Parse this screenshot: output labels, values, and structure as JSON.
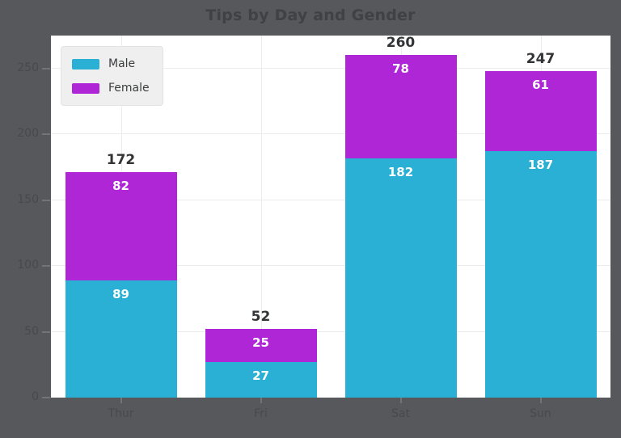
{
  "chart_data": {
    "type": "bar",
    "stacked": true,
    "title": "Tips by Day and Gender",
    "xlabel": "",
    "ylabel": "",
    "categories": [
      "Thur",
      "Fri",
      "Sat",
      "Sun"
    ],
    "series": [
      {
        "name": "Male",
        "color": "#29B0D4",
        "values": [
          89,
          27,
          182,
          187
        ]
      },
      {
        "name": "Female",
        "color": "#AF26D6",
        "values": [
          82,
          25,
          78,
          61
        ]
      }
    ],
    "total_labels": [
      "172",
      "52",
      "260",
      "247"
    ],
    "yticks": [
      "0",
      "50",
      "100",
      "150",
      "200",
      "250"
    ],
    "ytick_values": [
      0,
      50,
      100,
      150,
      200,
      250
    ],
    "ylim": [
      0,
      275
    ],
    "grid": true,
    "legend_position": "upper left",
    "legend_entries": [
      "Male",
      "Female"
    ]
  },
  "colors": {
    "figure_background": "#57585B",
    "plot_background": "#FFFFFF",
    "gridline": "#ECECEC",
    "male_series": "#29B0D4",
    "female_series": "#AF26D6"
  }
}
